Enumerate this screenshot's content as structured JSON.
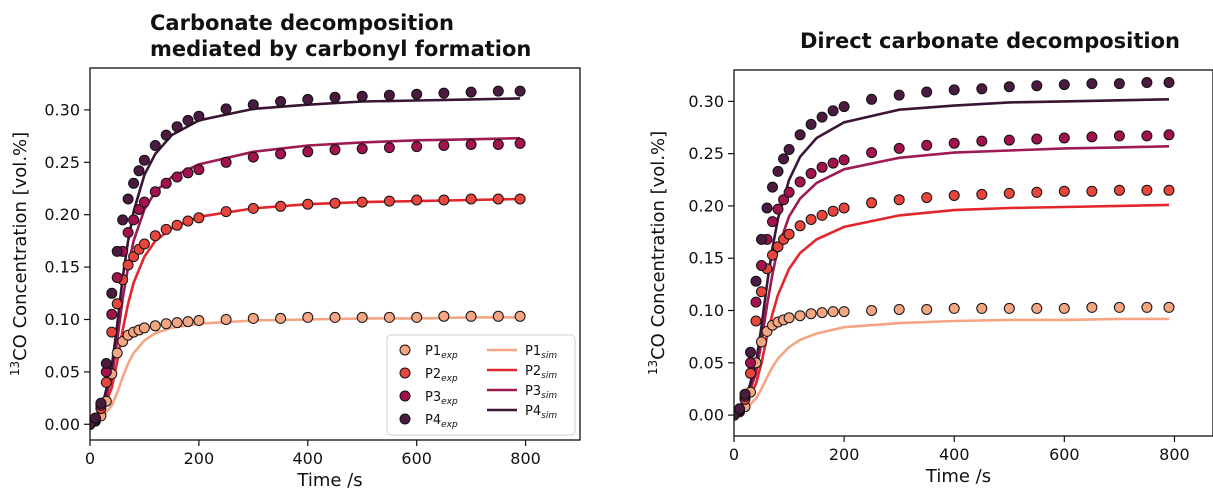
{
  "chart_data": [
    {
      "type": "line",
      "title": [
        "Carbonate decomposition",
        "mediated by carbonyl formation"
      ],
      "xlabel": "Time /s",
      "ylabel_main": "CO Concentration [vol.%]",
      "ylabel_sup": "13",
      "xlim": [
        0,
        900
      ],
      "ylim": [
        -0.015,
        0.34
      ],
      "xticks": [
        0,
        200,
        400,
        600,
        800
      ],
      "yticks": [
        0.0,
        0.05,
        0.1,
        0.15,
        0.2,
        0.25,
        0.3
      ],
      "legend": {
        "placement": "lower-right",
        "exp": [
          {
            "name": "P1",
            "sub": "exp"
          },
          {
            "name": "P2",
            "sub": "exp"
          },
          {
            "name": "P3",
            "sub": "exp"
          },
          {
            "name": "P4",
            "sub": "exp"
          }
        ],
        "sim": [
          {
            "name": "P1",
            "sub": "sim"
          },
          {
            "name": "P2",
            "sub": "sim"
          },
          {
            "name": "P3",
            "sub": "sim"
          },
          {
            "name": "P4",
            "sub": "sim"
          }
        ]
      },
      "series_exp": [
        {
          "name": "P1exp",
          "color": "#f4a582",
          "x": [
            0,
            10,
            20,
            30,
            40,
            50,
            60,
            70,
            80,
            90,
            100,
            120,
            140,
            160,
            180,
            200,
            250,
            300,
            350,
            400,
            450,
            500,
            550,
            600,
            650,
            700,
            750,
            790
          ],
          "y": [
            0.0,
            0.003,
            0.008,
            0.022,
            0.048,
            0.068,
            0.079,
            0.085,
            0.088,
            0.09,
            0.092,
            0.094,
            0.096,
            0.097,
            0.098,
            0.099,
            0.1,
            0.101,
            0.101,
            0.102,
            0.102,
            0.102,
            0.102,
            0.102,
            0.103,
            0.103,
            0.103,
            0.103
          ]
        },
        {
          "name": "P2exp",
          "color": "#e8453c",
          "x": [
            0,
            10,
            20,
            30,
            40,
            50,
            60,
            70,
            80,
            90,
            100,
            120,
            140,
            160,
            180,
            200,
            250,
            300,
            350,
            400,
            450,
            500,
            550,
            600,
            650,
            700,
            750,
            790
          ],
          "y": [
            0.0,
            0.004,
            0.015,
            0.04,
            0.088,
            0.115,
            0.138,
            0.152,
            0.16,
            0.167,
            0.172,
            0.18,
            0.186,
            0.19,
            0.194,
            0.197,
            0.203,
            0.206,
            0.208,
            0.21,
            0.211,
            0.212,
            0.213,
            0.214,
            0.214,
            0.215,
            0.215,
            0.215
          ]
        },
        {
          "name": "P3exp",
          "color": "#a3124f",
          "x": [
            0,
            10,
            20,
            30,
            40,
            50,
            60,
            70,
            80,
            90,
            100,
            120,
            140,
            160,
            180,
            200,
            250,
            300,
            350,
            400,
            450,
            500,
            550,
            600,
            650,
            700,
            750,
            790
          ],
          "y": [
            0.0,
            0.005,
            0.018,
            0.05,
            0.105,
            0.14,
            0.165,
            0.183,
            0.195,
            0.205,
            0.212,
            0.222,
            0.23,
            0.236,
            0.24,
            0.243,
            0.25,
            0.255,
            0.258,
            0.26,
            0.262,
            0.263,
            0.264,
            0.265,
            0.266,
            0.267,
            0.267,
            0.268
          ]
        },
        {
          "name": "P4exp",
          "color": "#4b1a41",
          "x": [
            0,
            10,
            20,
            30,
            40,
            50,
            60,
            70,
            80,
            90,
            100,
            120,
            140,
            160,
            180,
            200,
            250,
            300,
            350,
            400,
            450,
            500,
            550,
            600,
            650,
            700,
            750,
            790
          ],
          "y": [
            0.0,
            0.006,
            0.02,
            0.058,
            0.125,
            0.165,
            0.195,
            0.215,
            0.23,
            0.242,
            0.252,
            0.266,
            0.276,
            0.284,
            0.29,
            0.294,
            0.301,
            0.305,
            0.308,
            0.31,
            0.312,
            0.313,
            0.314,
            0.315,
            0.316,
            0.317,
            0.318,
            0.318
          ]
        }
      ],
      "series_sim": [
        {
          "name": "P1sim",
          "color": "#f4a582",
          "x": [
            0,
            20,
            40,
            50,
            60,
            70,
            80,
            100,
            120,
            150,
            200,
            300,
            400,
            500,
            600,
            700,
            790
          ],
          "y": [
            0.0,
            0.005,
            0.018,
            0.03,
            0.045,
            0.058,
            0.068,
            0.08,
            0.087,
            0.092,
            0.096,
            0.099,
            0.1,
            0.101,
            0.101,
            0.102,
            0.102
          ]
        },
        {
          "name": "P2sim",
          "color": "#e3262b",
          "x": [
            0,
            20,
            40,
            50,
            60,
            70,
            80,
            100,
            120,
            150,
            200,
            300,
            400,
            500,
            600,
            700,
            790
          ],
          "y": [
            0.0,
            0.008,
            0.035,
            0.06,
            0.09,
            0.115,
            0.135,
            0.16,
            0.175,
            0.187,
            0.198,
            0.206,
            0.21,
            0.212,
            0.213,
            0.214,
            0.215
          ]
        },
        {
          "name": "P3sim",
          "color": "#9d1a54",
          "x": [
            0,
            20,
            40,
            50,
            60,
            70,
            80,
            100,
            120,
            150,
            200,
            300,
            400,
            500,
            600,
            700,
            790
          ],
          "y": [
            0.0,
            0.01,
            0.045,
            0.08,
            0.12,
            0.15,
            0.175,
            0.205,
            0.222,
            0.236,
            0.248,
            0.26,
            0.266,
            0.269,
            0.271,
            0.272,
            0.273
          ]
        },
        {
          "name": "P4sim",
          "color": "#3b1535",
          "x": [
            0,
            20,
            40,
            50,
            60,
            70,
            80,
            100,
            120,
            150,
            200,
            300,
            400,
            500,
            600,
            700,
            790
          ],
          "y": [
            0.0,
            0.012,
            0.055,
            0.095,
            0.14,
            0.175,
            0.203,
            0.238,
            0.258,
            0.276,
            0.29,
            0.301,
            0.305,
            0.308,
            0.309,
            0.31,
            0.311
          ]
        }
      ]
    },
    {
      "type": "line",
      "title": [
        "Direct carbonate decomposition"
      ],
      "xlabel": "Time /s",
      "ylabel_main": "CO Concentration [vol.%]",
      "ylabel_sup": "13",
      "xlim": [
        0,
        870
      ],
      "ylim": [
        -0.02,
        0.33
      ],
      "xticks": [
        0,
        200,
        400,
        600,
        800
      ],
      "yticks": [
        0.0,
        0.05,
        0.1,
        0.15,
        0.2,
        0.25,
        0.3
      ],
      "series_exp": [
        {
          "name": "P1exp",
          "color": "#f4a582",
          "x": [
            0,
            10,
            20,
            30,
            40,
            50,
            60,
            70,
            80,
            90,
            100,
            120,
            140,
            160,
            180,
            200,
            250,
            300,
            350,
            400,
            450,
            500,
            550,
            600,
            650,
            700,
            750,
            790
          ],
          "y": [
            0.0,
            0.003,
            0.008,
            0.022,
            0.05,
            0.07,
            0.08,
            0.086,
            0.089,
            0.091,
            0.093,
            0.095,
            0.097,
            0.098,
            0.099,
            0.099,
            0.1,
            0.101,
            0.101,
            0.102,
            0.102,
            0.102,
            0.102,
            0.102,
            0.103,
            0.103,
            0.103,
            0.103
          ]
        },
        {
          "name": "P2exp",
          "color": "#e8453c",
          "x": [
            0,
            10,
            20,
            30,
            40,
            50,
            60,
            70,
            80,
            90,
            100,
            120,
            140,
            160,
            180,
            200,
            250,
            300,
            350,
            400,
            450,
            500,
            550,
            600,
            650,
            700,
            750,
            790
          ],
          "y": [
            0.0,
            0.004,
            0.015,
            0.04,
            0.09,
            0.118,
            0.14,
            0.153,
            0.161,
            0.168,
            0.173,
            0.181,
            0.187,
            0.191,
            0.195,
            0.198,
            0.203,
            0.206,
            0.208,
            0.21,
            0.211,
            0.212,
            0.213,
            0.214,
            0.214,
            0.215,
            0.215,
            0.215
          ]
        },
        {
          "name": "P3exp",
          "color": "#a3124f",
          "x": [
            0,
            10,
            20,
            30,
            40,
            50,
            60,
            70,
            80,
            90,
            100,
            120,
            140,
            160,
            180,
            200,
            250,
            300,
            350,
            400,
            450,
            500,
            550,
            600,
            650,
            700,
            750,
            790
          ],
          "y": [
            0.0,
            0.005,
            0.018,
            0.05,
            0.108,
            0.143,
            0.168,
            0.185,
            0.197,
            0.206,
            0.213,
            0.223,
            0.231,
            0.237,
            0.241,
            0.244,
            0.251,
            0.255,
            0.258,
            0.26,
            0.262,
            0.263,
            0.264,
            0.265,
            0.266,
            0.267,
            0.267,
            0.268
          ]
        },
        {
          "name": "P4exp",
          "color": "#4b1a41",
          "x": [
            0,
            10,
            20,
            30,
            40,
            50,
            60,
            70,
            80,
            90,
            100,
            120,
            140,
            160,
            180,
            200,
            250,
            300,
            350,
            400,
            450,
            500,
            550,
            600,
            650,
            700,
            750,
            790
          ],
          "y": [
            0.0,
            0.006,
            0.02,
            0.06,
            0.128,
            0.168,
            0.198,
            0.218,
            0.233,
            0.245,
            0.254,
            0.268,
            0.278,
            0.285,
            0.291,
            0.295,
            0.302,
            0.306,
            0.309,
            0.311,
            0.312,
            0.314,
            0.315,
            0.316,
            0.317,
            0.317,
            0.318,
            0.318
          ]
        }
      ],
      "series_sim": [
        {
          "name": "P1sim",
          "color": "#f4a582",
          "x": [
            0,
            20,
            40,
            50,
            60,
            70,
            80,
            100,
            120,
            150,
            200,
            300,
            400,
            500,
            600,
            700,
            790
          ],
          "y": [
            0.0,
            0.005,
            0.016,
            0.025,
            0.036,
            0.046,
            0.054,
            0.065,
            0.072,
            0.078,
            0.084,
            0.088,
            0.09,
            0.091,
            0.091,
            0.092,
            0.092
          ]
        },
        {
          "name": "P2sim",
          "color": "#e3262b",
          "x": [
            0,
            20,
            40,
            50,
            60,
            70,
            80,
            100,
            120,
            150,
            200,
            300,
            400,
            500,
            600,
            700,
            790
          ],
          "y": [
            0.0,
            0.008,
            0.03,
            0.05,
            0.075,
            0.097,
            0.115,
            0.14,
            0.155,
            0.168,
            0.18,
            0.191,
            0.196,
            0.198,
            0.199,
            0.2,
            0.201
          ]
        },
        {
          "name": "P3sim",
          "color": "#9d1a54",
          "x": [
            0,
            20,
            40,
            50,
            60,
            70,
            80,
            100,
            120,
            150,
            200,
            300,
            400,
            500,
            600,
            700,
            790
          ],
          "y": [
            0.0,
            0.01,
            0.04,
            0.07,
            0.105,
            0.135,
            0.16,
            0.19,
            0.207,
            0.222,
            0.235,
            0.246,
            0.251,
            0.253,
            0.255,
            0.256,
            0.257
          ]
        },
        {
          "name": "P4sim",
          "color": "#3b1535",
          "x": [
            0,
            20,
            40,
            50,
            60,
            70,
            80,
            100,
            120,
            150,
            200,
            300,
            400,
            500,
            600,
            700,
            790
          ],
          "y": [
            0.0,
            0.012,
            0.05,
            0.085,
            0.125,
            0.16,
            0.188,
            0.225,
            0.247,
            0.265,
            0.28,
            0.292,
            0.296,
            0.299,
            0.3,
            0.301,
            0.302
          ]
        }
      ]
    }
  ]
}
